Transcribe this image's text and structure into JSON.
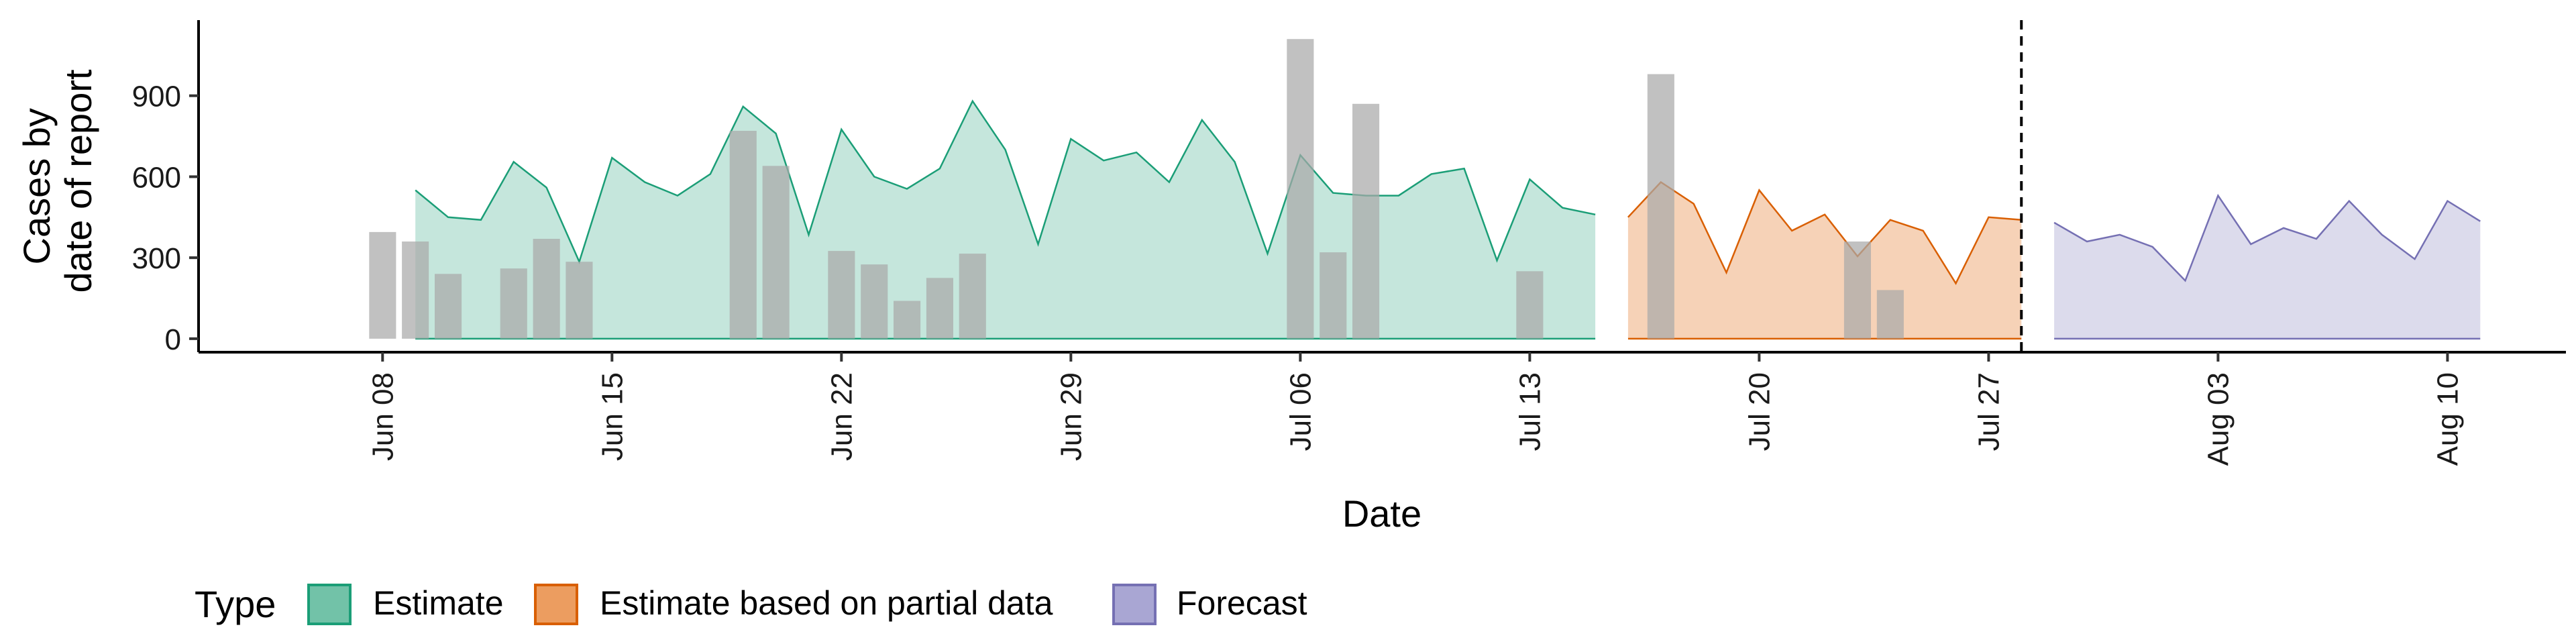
{
  "chart_data": {
    "type": "area",
    "xlabel": "Date",
    "ylabel_lines": [
      "Cases by",
      "date of report"
    ],
    "x_ticks": [
      "Jun 08",
      "Jun 15",
      "Jun 22",
      "Jun 29",
      "Jul 06",
      "Jul 13",
      "Jul 20",
      "Jul 27",
      "Aug 03",
      "Aug 10"
    ],
    "y_ticks": [
      0,
      300,
      600,
      900
    ],
    "ylim": [
      -50,
      1180
    ],
    "date_range": [
      "2020-06-03",
      "2020-08-13"
    ],
    "vline_date": "2020-07-28",
    "bars": [
      {
        "date": "2020-06-08",
        "value": 395
      },
      {
        "date": "2020-06-09",
        "value": 360
      },
      {
        "date": "2020-06-10",
        "value": 240
      },
      {
        "date": "2020-06-12",
        "value": 260
      },
      {
        "date": "2020-06-13",
        "value": 370
      },
      {
        "date": "2020-06-14",
        "value": 285
      },
      {
        "date": "2020-06-19",
        "value": 770
      },
      {
        "date": "2020-06-20",
        "value": 640
      },
      {
        "date": "2020-06-22",
        "value": 325
      },
      {
        "date": "2020-06-23",
        "value": 275
      },
      {
        "date": "2020-06-24",
        "value": 140
      },
      {
        "date": "2020-06-25",
        "value": 225
      },
      {
        "date": "2020-06-26",
        "value": 315
      },
      {
        "date": "2020-07-06",
        "value": 1110
      },
      {
        "date": "2020-07-07",
        "value": 320
      },
      {
        "date": "2020-07-08",
        "value": 870
      },
      {
        "date": "2020-07-13",
        "value": 250
      },
      {
        "date": "2020-07-17",
        "value": 980
      },
      {
        "date": "2020-07-23",
        "value": 360
      },
      {
        "date": "2020-07-24",
        "value": 180
      }
    ],
    "series": [
      {
        "name": "Estimate",
        "color": "#1b9e77",
        "fill": "#c5e6dc",
        "start": "2020-06-09",
        "values": [
          550,
          450,
          440,
          655,
          560,
          285,
          670,
          580,
          530,
          610,
          860,
          760,
          385,
          775,
          600,
          555,
          630,
          880,
          700,
          350,
          740,
          660,
          690,
          580,
          810,
          655,
          315,
          680,
          540,
          530,
          530,
          610,
          630,
          290,
          590,
          485,
          460
        ]
      },
      {
        "name": "Estimate based on partial data",
        "color": "#d95f02",
        "fill": "#f6d2b7",
        "start": "2020-07-16",
        "values": [
          450,
          580,
          500,
          245,
          550,
          400,
          460,
          305,
          440,
          400,
          205,
          450,
          440
        ]
      },
      {
        "name": "Forecast",
        "color": "#7570b3",
        "fill": "#dcdbec",
        "start": "2020-07-29",
        "values": [
          430,
          360,
          385,
          340,
          215,
          530,
          350,
          410,
          370,
          510,
          385,
          295,
          510,
          435
        ]
      }
    ],
    "bar_color": "#a9a9a9",
    "legend": {
      "title": "Type",
      "position": "bottom",
      "entries": [
        {
          "label": "Estimate",
          "fill": "#72c2a8",
          "stroke": "#1b9e77"
        },
        {
          "label": "Estimate based on partial data",
          "fill": "#ec9d60",
          "stroke": "#d95f02"
        },
        {
          "label": "Forecast",
          "fill": "#a9a6d3",
          "stroke": "#7570b3"
        }
      ]
    },
    "grid": false
  }
}
